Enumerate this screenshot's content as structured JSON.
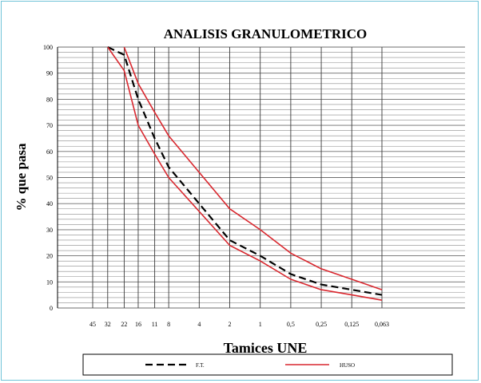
{
  "chart_data": {
    "type": "line",
    "title": "ANALISIS GRANULOMETRICO",
    "xlabel": "Tamices UNE",
    "ylabel": "% que pasa",
    "x_ticks": [
      "45",
      "32",
      "22",
      "16",
      "11",
      "8",
      "4",
      "2",
      "1",
      "0,5",
      "0,25",
      "0,125",
      "0,063"
    ],
    "y_ticks": [
      "0",
      "10",
      "20",
      "30",
      "40",
      "50",
      "60",
      "70",
      "80",
      "90",
      "100"
    ],
    "ylim": [
      0,
      100
    ],
    "x_scale": "log",
    "grid": true,
    "legend_position": "bottom",
    "series": [
      {
        "name": "F.T.",
        "color": "#000000",
        "style": "dashed",
        "x": [
          32,
          22,
          16,
          11,
          8,
          4,
          2,
          1,
          0.5,
          0.25,
          0.125,
          0.063
        ],
        "y": [
          100,
          97,
          80,
          65,
          54,
          40,
          26,
          20,
          13,
          9,
          7,
          5
        ]
      },
      {
        "name": "HUSO",
        "color": "#d9272e",
        "style": "solid",
        "x": [
          22,
          16,
          11,
          8,
          4,
          2,
          1,
          0.5,
          0.25,
          0.125,
          0.063
        ],
        "y": [
          100,
          86,
          75,
          66,
          52,
          38,
          30,
          21,
          15,
          11,
          7
        ]
      },
      {
        "name": "",
        "color": "#d9272e",
        "style": "solid",
        "x": [
          32,
          22,
          16,
          11,
          8,
          4,
          2,
          1,
          0.5,
          0.25,
          0.125,
          0.063
        ],
        "y": [
          100,
          91,
          70,
          59,
          50,
          37,
          24,
          18,
          11,
          7,
          5,
          3
        ]
      }
    ]
  }
}
